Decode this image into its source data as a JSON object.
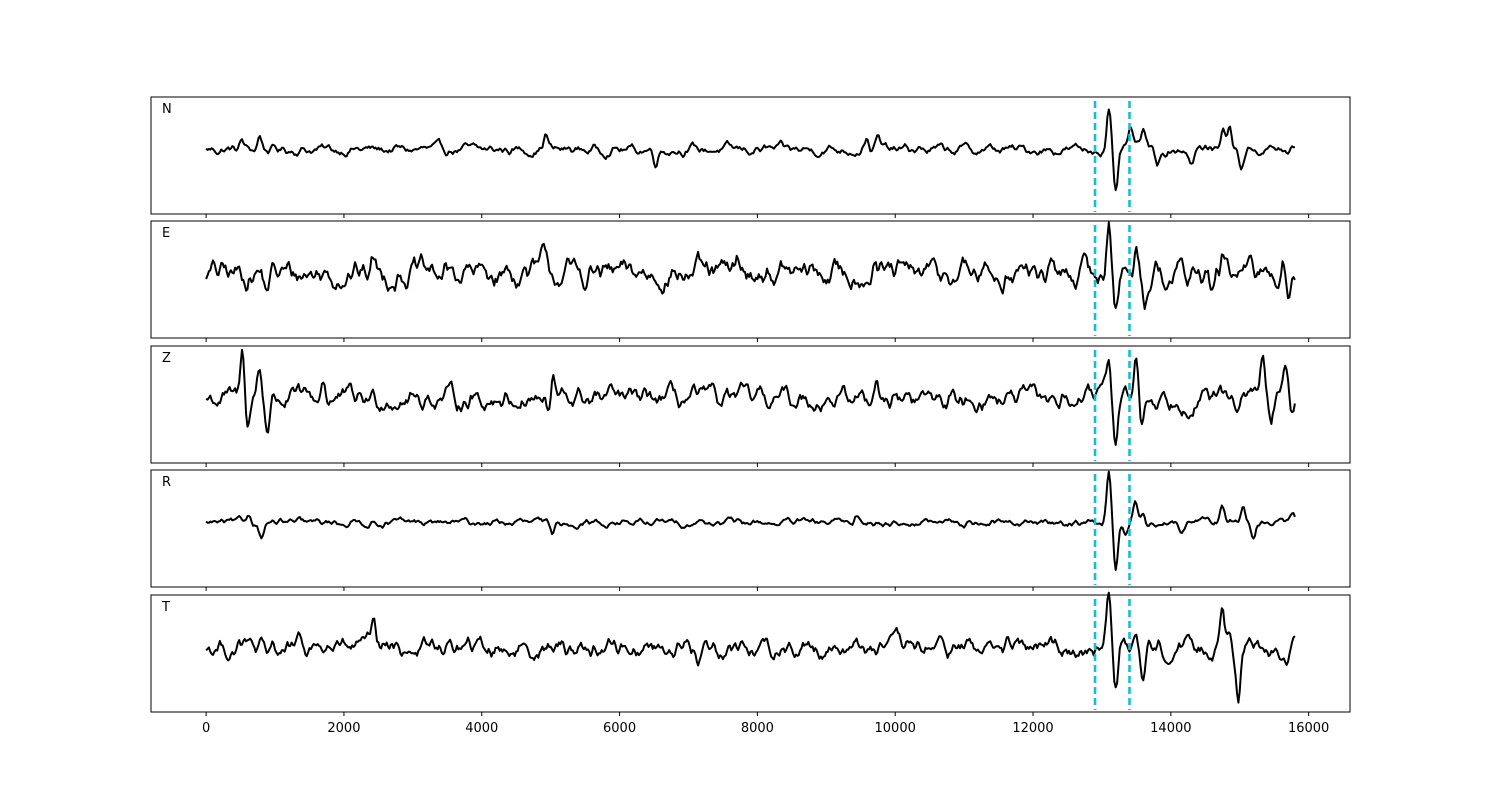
{
  "chart_data": {
    "type": "line",
    "title": "",
    "xlabel": "",
    "ylabel": "",
    "xlim": [
      -800,
      16600
    ],
    "x_ticks": [
      0,
      2000,
      4000,
      6000,
      8000,
      10000,
      12000,
      14000,
      16000
    ],
    "x_tick_labels": [
      "0",
      "2000",
      "4000",
      "6000",
      "8000",
      "10000",
      "12000",
      "14000",
      "16000"
    ],
    "sample_count": 15800,
    "markers": [
      12900,
      13400
    ],
    "colors": {
      "trace": "#000000",
      "marker": "#17becf"
    },
    "grid": false,
    "legend": "none",
    "panels": [
      {
        "label": "N",
        "noise_level": 0.11,
        "events": [
          {
            "x": 520,
            "amp": 0.15
          },
          {
            "x": 780,
            "amp": 0.25
          },
          {
            "x": 4930,
            "amp": 0.28
          },
          {
            "x": 6520,
            "amp": -0.2
          },
          {
            "x": 9580,
            "amp": 0.22
          },
          {
            "x": 9750,
            "amp": 0.2
          },
          {
            "x": 13100,
            "amp": 0.72
          },
          {
            "x": 13200,
            "amp": -0.9
          },
          {
            "x": 13420,
            "amp": 0.38
          },
          {
            "x": 13600,
            "amp": 0.4
          },
          {
            "x": 13800,
            "amp": -0.3
          },
          {
            "x": 14300,
            "amp": -0.25
          },
          {
            "x": 14750,
            "amp": 0.42
          },
          {
            "x": 14850,
            "amp": 0.4
          },
          {
            "x": 15020,
            "amp": -0.3
          },
          {
            "x": 15700,
            "amp": -0.1
          }
        ]
      },
      {
        "label": "E",
        "noise_level": 0.22,
        "events": [
          {
            "x": 870,
            "amp": -0.3
          },
          {
            "x": 2420,
            "amp": 0.28
          },
          {
            "x": 4880,
            "amp": 0.3
          },
          {
            "x": 7720,
            "amp": 0.3
          },
          {
            "x": 9700,
            "amp": 0.28
          },
          {
            "x": 13100,
            "amp": 0.95
          },
          {
            "x": 13200,
            "amp": -0.55
          },
          {
            "x": 13500,
            "amp": 0.4
          },
          {
            "x": 13620,
            "amp": -0.4
          },
          {
            "x": 14600,
            "amp": -0.38
          },
          {
            "x": 14750,
            "amp": 0.3
          },
          {
            "x": 15620,
            "amp": 0.35
          },
          {
            "x": 15720,
            "amp": -0.3
          }
        ]
      },
      {
        "label": "Z",
        "noise_level": 0.2,
        "events": [
          {
            "x": 530,
            "amp": 0.85
          },
          {
            "x": 600,
            "amp": -0.45
          },
          {
            "x": 770,
            "amp": 0.55
          },
          {
            "x": 890,
            "amp": -0.5
          },
          {
            "x": 1700,
            "amp": 0.35
          },
          {
            "x": 4980,
            "amp": -0.5
          },
          {
            "x": 5020,
            "amp": 0.5
          },
          {
            "x": 9720,
            "amp": 0.45
          },
          {
            "x": 13100,
            "amp": 0.75
          },
          {
            "x": 13200,
            "amp": -0.68
          },
          {
            "x": 13500,
            "amp": 0.7
          },
          {
            "x": 13580,
            "amp": -0.45
          },
          {
            "x": 15330,
            "amp": 0.9
          },
          {
            "x": 15450,
            "amp": -0.5
          },
          {
            "x": 15680,
            "amp": 0.6
          },
          {
            "x": 15750,
            "amp": -0.4
          }
        ]
      },
      {
        "label": "R",
        "noise_level": 0.07,
        "events": [
          {
            "x": 620,
            "amp": 0.15
          },
          {
            "x": 800,
            "amp": -0.25
          },
          {
            "x": 5020,
            "amp": -0.25
          },
          {
            "x": 9440,
            "amp": 0.15
          },
          {
            "x": 13100,
            "amp": 0.92
          },
          {
            "x": 13200,
            "amp": -0.85
          },
          {
            "x": 13350,
            "amp": -0.25
          },
          {
            "x": 13480,
            "amp": 0.38
          },
          {
            "x": 13600,
            "amp": 0.25
          },
          {
            "x": 14150,
            "amp": -0.2
          },
          {
            "x": 14750,
            "amp": 0.3
          },
          {
            "x": 15050,
            "amp": 0.3
          },
          {
            "x": 15200,
            "amp": -0.25
          },
          {
            "x": 15760,
            "amp": 0.12
          }
        ]
      },
      {
        "label": "T",
        "noise_level": 0.2,
        "events": [
          {
            "x": 880,
            "amp": -0.3
          },
          {
            "x": 2420,
            "amp": 0.35
          },
          {
            "x": 7140,
            "amp": -0.3
          },
          {
            "x": 13100,
            "amp": 0.95
          },
          {
            "x": 13200,
            "amp": -0.78
          },
          {
            "x": 13500,
            "amp": 0.4
          },
          {
            "x": 13600,
            "amp": -0.45
          },
          {
            "x": 14750,
            "amp": 0.65
          },
          {
            "x": 14850,
            "amp": 0.45
          },
          {
            "x": 14980,
            "amp": -0.7
          },
          {
            "x": 15700,
            "amp": -0.3
          }
        ]
      }
    ]
  }
}
